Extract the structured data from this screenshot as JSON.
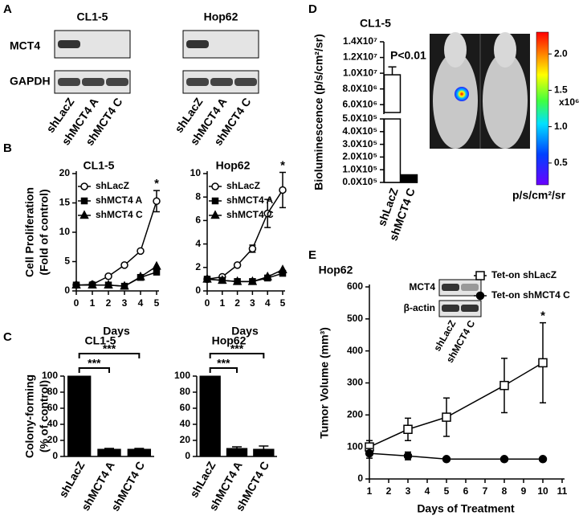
{
  "panel_labels": [
    "A",
    "B",
    "C",
    "D",
    "E"
  ],
  "blots": {
    "row_labels": [
      "MCT4",
      "GAPDH"
    ],
    "groups": [
      {
        "title": "CL1-5",
        "lanes": [
          "shLacZ",
          "shMCT4 A",
          "shMCT4 C"
        ]
      },
      {
        "title": "Hop62",
        "lanes": [
          "shLacZ",
          "shMCT4 A",
          "shMCT4 C"
        ]
      }
    ],
    "inset": {
      "row_labels": [
        "MCT4",
        "β-actin"
      ],
      "lanes": [
        "shLacZ",
        "shMCT4 C"
      ]
    }
  },
  "image": {
    "colorbar": {
      "range": [
        0.2,
        2.3
      ],
      "ticks": [
        {
          "value": 2,
          "label": "2.0"
        },
        1.5,
        {
          "value": 1,
          "label": "1.0"
        },
        0.5
      ],
      "multiplier": "x10⁶",
      "unit": "p/s/cm²/sr"
    }
  },
  "chart_data": [
    {
      "type": "line",
      "title": "CL1-5",
      "xlabel": "Days",
      "ylabel": [
        "Cell Proliferation",
        "(Fold of control)"
      ],
      "x": [
        0,
        1,
        2,
        3,
        4,
        5
      ],
      "xlim": [
        0,
        5
      ],
      "xticks": [
        0,
        1,
        2,
        3,
        4,
        5
      ],
      "ylim": [
        0,
        20
      ],
      "yticks": [
        0,
        5,
        10,
        15,
        20
      ],
      "series": [
        {
          "name": "shLacZ",
          "color": "#000000",
          "marker": "open-circle",
          "values": [
            1,
            1.1,
            2.5,
            4.4,
            6.8,
            15.3
          ],
          "errors": [
            0,
            0,
            0,
            0.2,
            0,
            1.8
          ]
        },
        {
          "name": "shMCT4 A",
          "color": "#000000",
          "marker": "square",
          "values": [
            1,
            1,
            1,
            0.8,
            2.3,
            3.2
          ]
        },
        {
          "name": "shMCT4 C",
          "color": "#000000",
          "marker": "triangle",
          "values": [
            1,
            1,
            1,
            0.8,
            2.4,
            4.2
          ]
        }
      ],
      "annotations": [
        "*"
      ]
    },
    {
      "type": "line",
      "title": "Hop62",
      "xlabel": "Days",
      "x": [
        0,
        1,
        2,
        3,
        4,
        5
      ],
      "xlim": [
        0,
        5
      ],
      "xticks": [
        0,
        1,
        2,
        3,
        4,
        5
      ],
      "ylim": [
        0,
        10
      ],
      "yticks": [
        0,
        2,
        4,
        6,
        8,
        10
      ],
      "series": [
        {
          "name": "shLacZ",
          "color": "#000000",
          "marker": "open-circle",
          "values": [
            1,
            1.2,
            2.2,
            3.6,
            6.6,
            8.6
          ],
          "errors": [
            0,
            0,
            0,
            0.3,
            1.2,
            1.5
          ]
        },
        {
          "name": "shMCT4 A",
          "color": "#000000",
          "marker": "square",
          "values": [
            1,
            0.9,
            0.8,
            0.8,
            1.1,
            1.5
          ]
        },
        {
          "name": "shMCT4 C",
          "color": "#000000",
          "marker": "triangle",
          "values": [
            1,
            0.9,
            0.8,
            0.8,
            1.2,
            1.8
          ]
        }
      ],
      "annotations": [
        "*"
      ]
    },
    {
      "type": "bar",
      "title": "CL1-5",
      "ylabel": [
        "Colony-forming",
        "(% of control)"
      ],
      "categories": [
        "shLacZ",
        "shMCT4 A",
        "shMCT4 C"
      ],
      "values": [
        100,
        9,
        9
      ],
      "errors": [
        0,
        1,
        1
      ],
      "colors": [
        "#000000",
        "#000000",
        "#000000"
      ],
      "ylim": [
        0,
        100
      ],
      "yticks": [
        0,
        20,
        40,
        60,
        80,
        100
      ],
      "annotations": [
        "***",
        "***"
      ]
    },
    {
      "type": "bar",
      "title": "Hop62",
      "categories": [
        "shLacZ",
        "shMCT4 A",
        "shMCT4 C"
      ],
      "values": [
        100,
        10,
        9
      ],
      "errors": [
        0,
        2,
        4
      ],
      "colors": [
        "#000000",
        "#000000",
        "#000000"
      ],
      "ylim": [
        0,
        100
      ],
      "yticks": [
        0,
        20,
        40,
        60,
        80,
        100
      ],
      "annotations": [
        "***",
        "***"
      ]
    },
    {
      "type": "broken-bar",
      "title": "CL1-5",
      "ylabel": "Bioluminescence (p/s/cm²/sr)",
      "categories": [
        "shLacZ",
        "shMCT4 C"
      ],
      "values": [
        9800000,
        60000
      ],
      "errors": [
        1000000,
        0
      ],
      "colors": [
        "#ffffff",
        "#000000"
      ],
      "ylim": [
        0,
        14000000
      ],
      "axis_break": [
        500000,
        5000000
      ],
      "yticks": [
        {
          "value": 0,
          "label": "0.0X10⁵"
        },
        {
          "value": 100000,
          "label": "1.0X10⁵"
        },
        {
          "value": 200000,
          "label": "2.0X10⁵"
        },
        {
          "value": 300000,
          "label": "3.0X10⁵"
        },
        {
          "value": 400000,
          "label": "4.0X10⁵"
        },
        {
          "value": 500000,
          "label": "5.0X10⁵"
        },
        {
          "value": 6000000,
          "label": "6.0X10⁶"
        },
        {
          "value": 8000000,
          "label": "8.0X10⁶"
        },
        {
          "value": 10000000,
          "label": "1.0X10⁷"
        },
        {
          "value": 12000000,
          "label": "1.2X10⁷"
        },
        {
          "value": 14000000,
          "label": "1.4X10⁷"
        }
      ],
      "annotations": [
        "P<0.01"
      ]
    },
    {
      "type": "line",
      "title": "Hop62",
      "xlabel": "Days of Treatment",
      "ylabel": "Tumor Volume (mm³)",
      "x": [
        1,
        3,
        5,
        8,
        10
      ],
      "xlim": [
        1,
        11
      ],
      "xticks": [
        1,
        2,
        3,
        4,
        5,
        6,
        7,
        8,
        9,
        10,
        11
      ],
      "ylim": [
        0,
        600
      ],
      "yticks": [
        0,
        100,
        200,
        300,
        400,
        500,
        600
      ],
      "series": [
        {
          "name": "Tet-on shLacZ",
          "color": "#000000",
          "marker": "open-square",
          "values": [
            100,
            155,
            193,
            292,
            363
          ],
          "errors": [
            20,
            35,
            60,
            85,
            125
          ]
        },
        {
          "name": "Tet-on shMCT4 C",
          "color": "#000000",
          "marker": "circle",
          "values": [
            80,
            72,
            62,
            62,
            62
          ],
          "errors": [
            15,
            12,
            0,
            0,
            0
          ]
        }
      ],
      "annotations": [
        "*"
      ]
    }
  ]
}
